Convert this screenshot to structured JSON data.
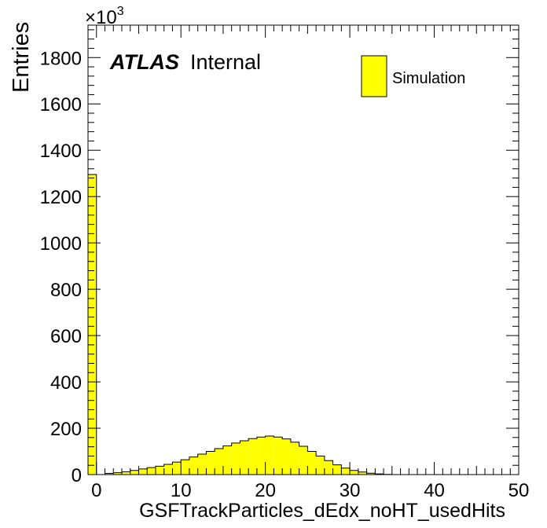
{
  "chart_data": {
    "type": "bar",
    "xlabel": "GSFTrackParticles_dEdx_noHT_usedHits",
    "ylabel": "Entries",
    "y_multiplier_text": "×10",
    "y_multiplier_exp": "3",
    "xlim": [
      -1,
      50
    ],
    "ylim": [
      0,
      1940
    ],
    "x_ticks": [
      0,
      10,
      20,
      30,
      40,
      50
    ],
    "y_ticks": [
      0,
      200,
      400,
      600,
      800,
      1000,
      1200,
      1400,
      1600,
      1800
    ],
    "bin_width": 1,
    "bins_start": -1,
    "values": [
      1295,
      0,
      5,
      8,
      12,
      18,
      24,
      30,
      36,
      44,
      54,
      64,
      76,
      88,
      100,
      112,
      124,
      136,
      146,
      155,
      162,
      166,
      162,
      154,
      140,
      122,
      100,
      80,
      60,
      42,
      28,
      18,
      11,
      6,
      3,
      1,
      0,
      0,
      0,
      0,
      0,
      0,
      0,
      0,
      0,
      0,
      0,
      0,
      0,
      0,
      0
    ],
    "fill_color": "#ffff00",
    "edge_color": "#000000",
    "legend": {
      "label": "Simulation",
      "placement": "top-right"
    },
    "grid": false
  },
  "atlas_label": {
    "bold": "ATLAS",
    "text": "Internal"
  }
}
